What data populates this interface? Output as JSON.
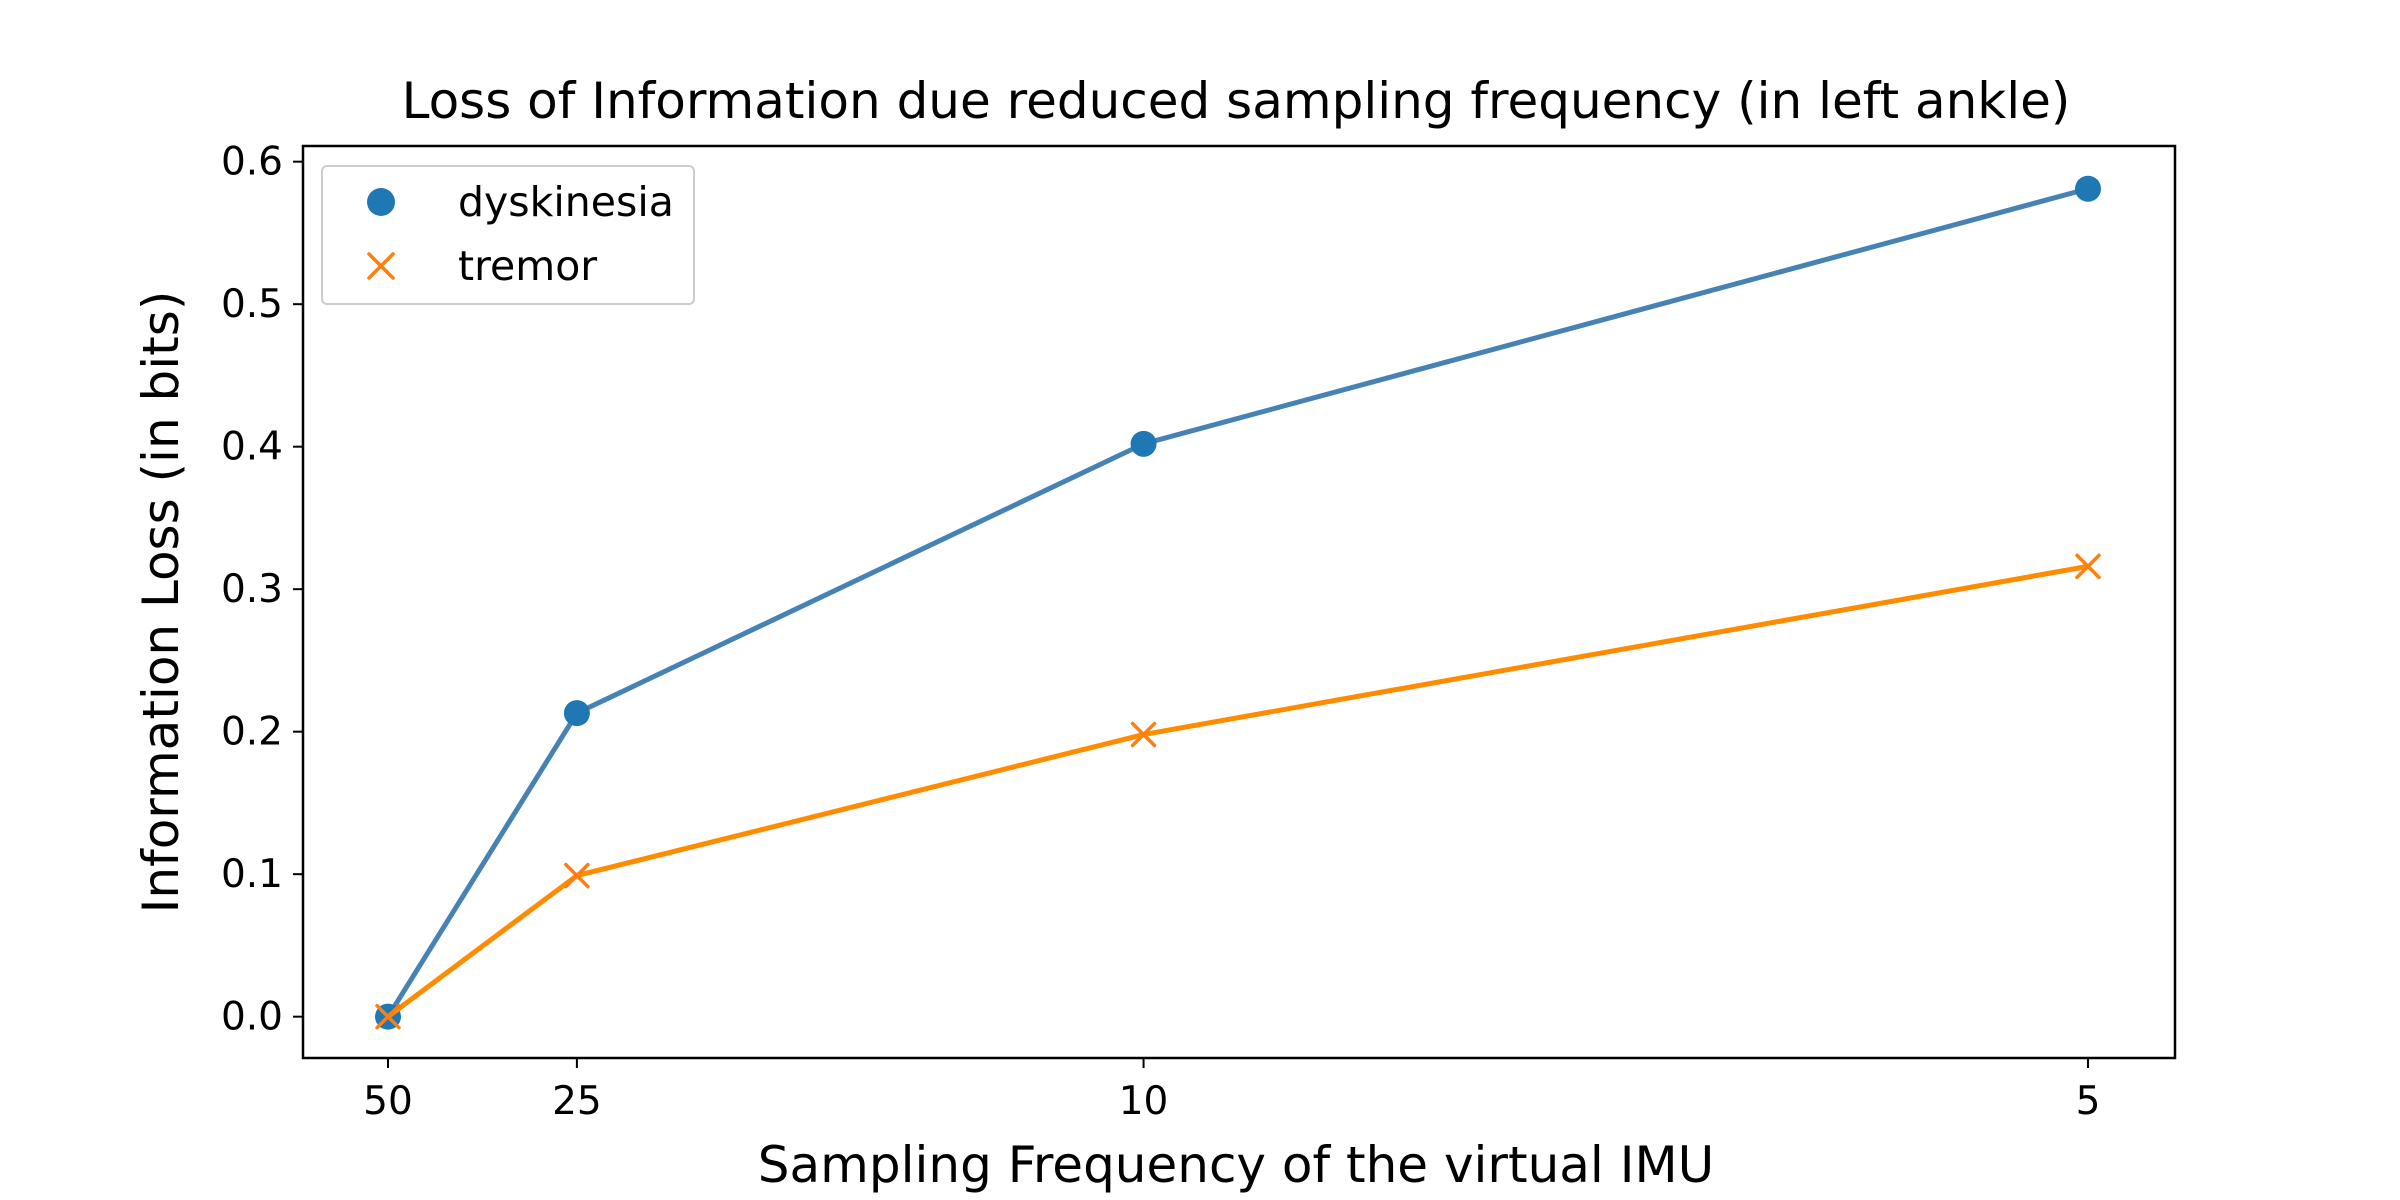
{
  "chart_data": {
    "type": "line",
    "title": "Loss of Information due reduced sampling frequency (in left ankle)",
    "xlabel": "Sampling Frequency of the virtual IMU",
    "ylabel": "Information Loss (in bits)",
    "x_axis": {
      "scale": "reciprocal",
      "direction": "decreasing frequency to the right",
      "ticks": [
        50,
        25,
        10,
        5
      ],
      "tick_labels": [
        "50",
        "25",
        "10",
        "5"
      ]
    },
    "y_axis": {
      "ylim": [
        -0.029,
        0.611
      ],
      "ticks": [
        0.0,
        0.1,
        0.2,
        0.3,
        0.4,
        0.5,
        0.6
      ],
      "tick_labels": [
        "0.0",
        "0.1",
        "0.2",
        "0.3",
        "0.4",
        "0.5",
        "0.6"
      ]
    },
    "grid": false,
    "legend": {
      "placement": "top-left",
      "entries": [
        "dyskinesia",
        "tremor"
      ]
    },
    "x": [
      50,
      25,
      10,
      5
    ],
    "series": [
      {
        "name": "dyskinesia",
        "marker": "circle",
        "line_color": "#4682b4",
        "marker_color": "#1f77b4",
        "values": [
          0.0,
          0.213,
          0.402,
          0.581
        ]
      },
      {
        "name": "tremor",
        "marker": "x",
        "line_color": "#ff8c00",
        "marker_color": "#ff7f0e",
        "values": [
          0.0,
          0.099,
          0.198,
          0.316
        ]
      }
    ]
  }
}
